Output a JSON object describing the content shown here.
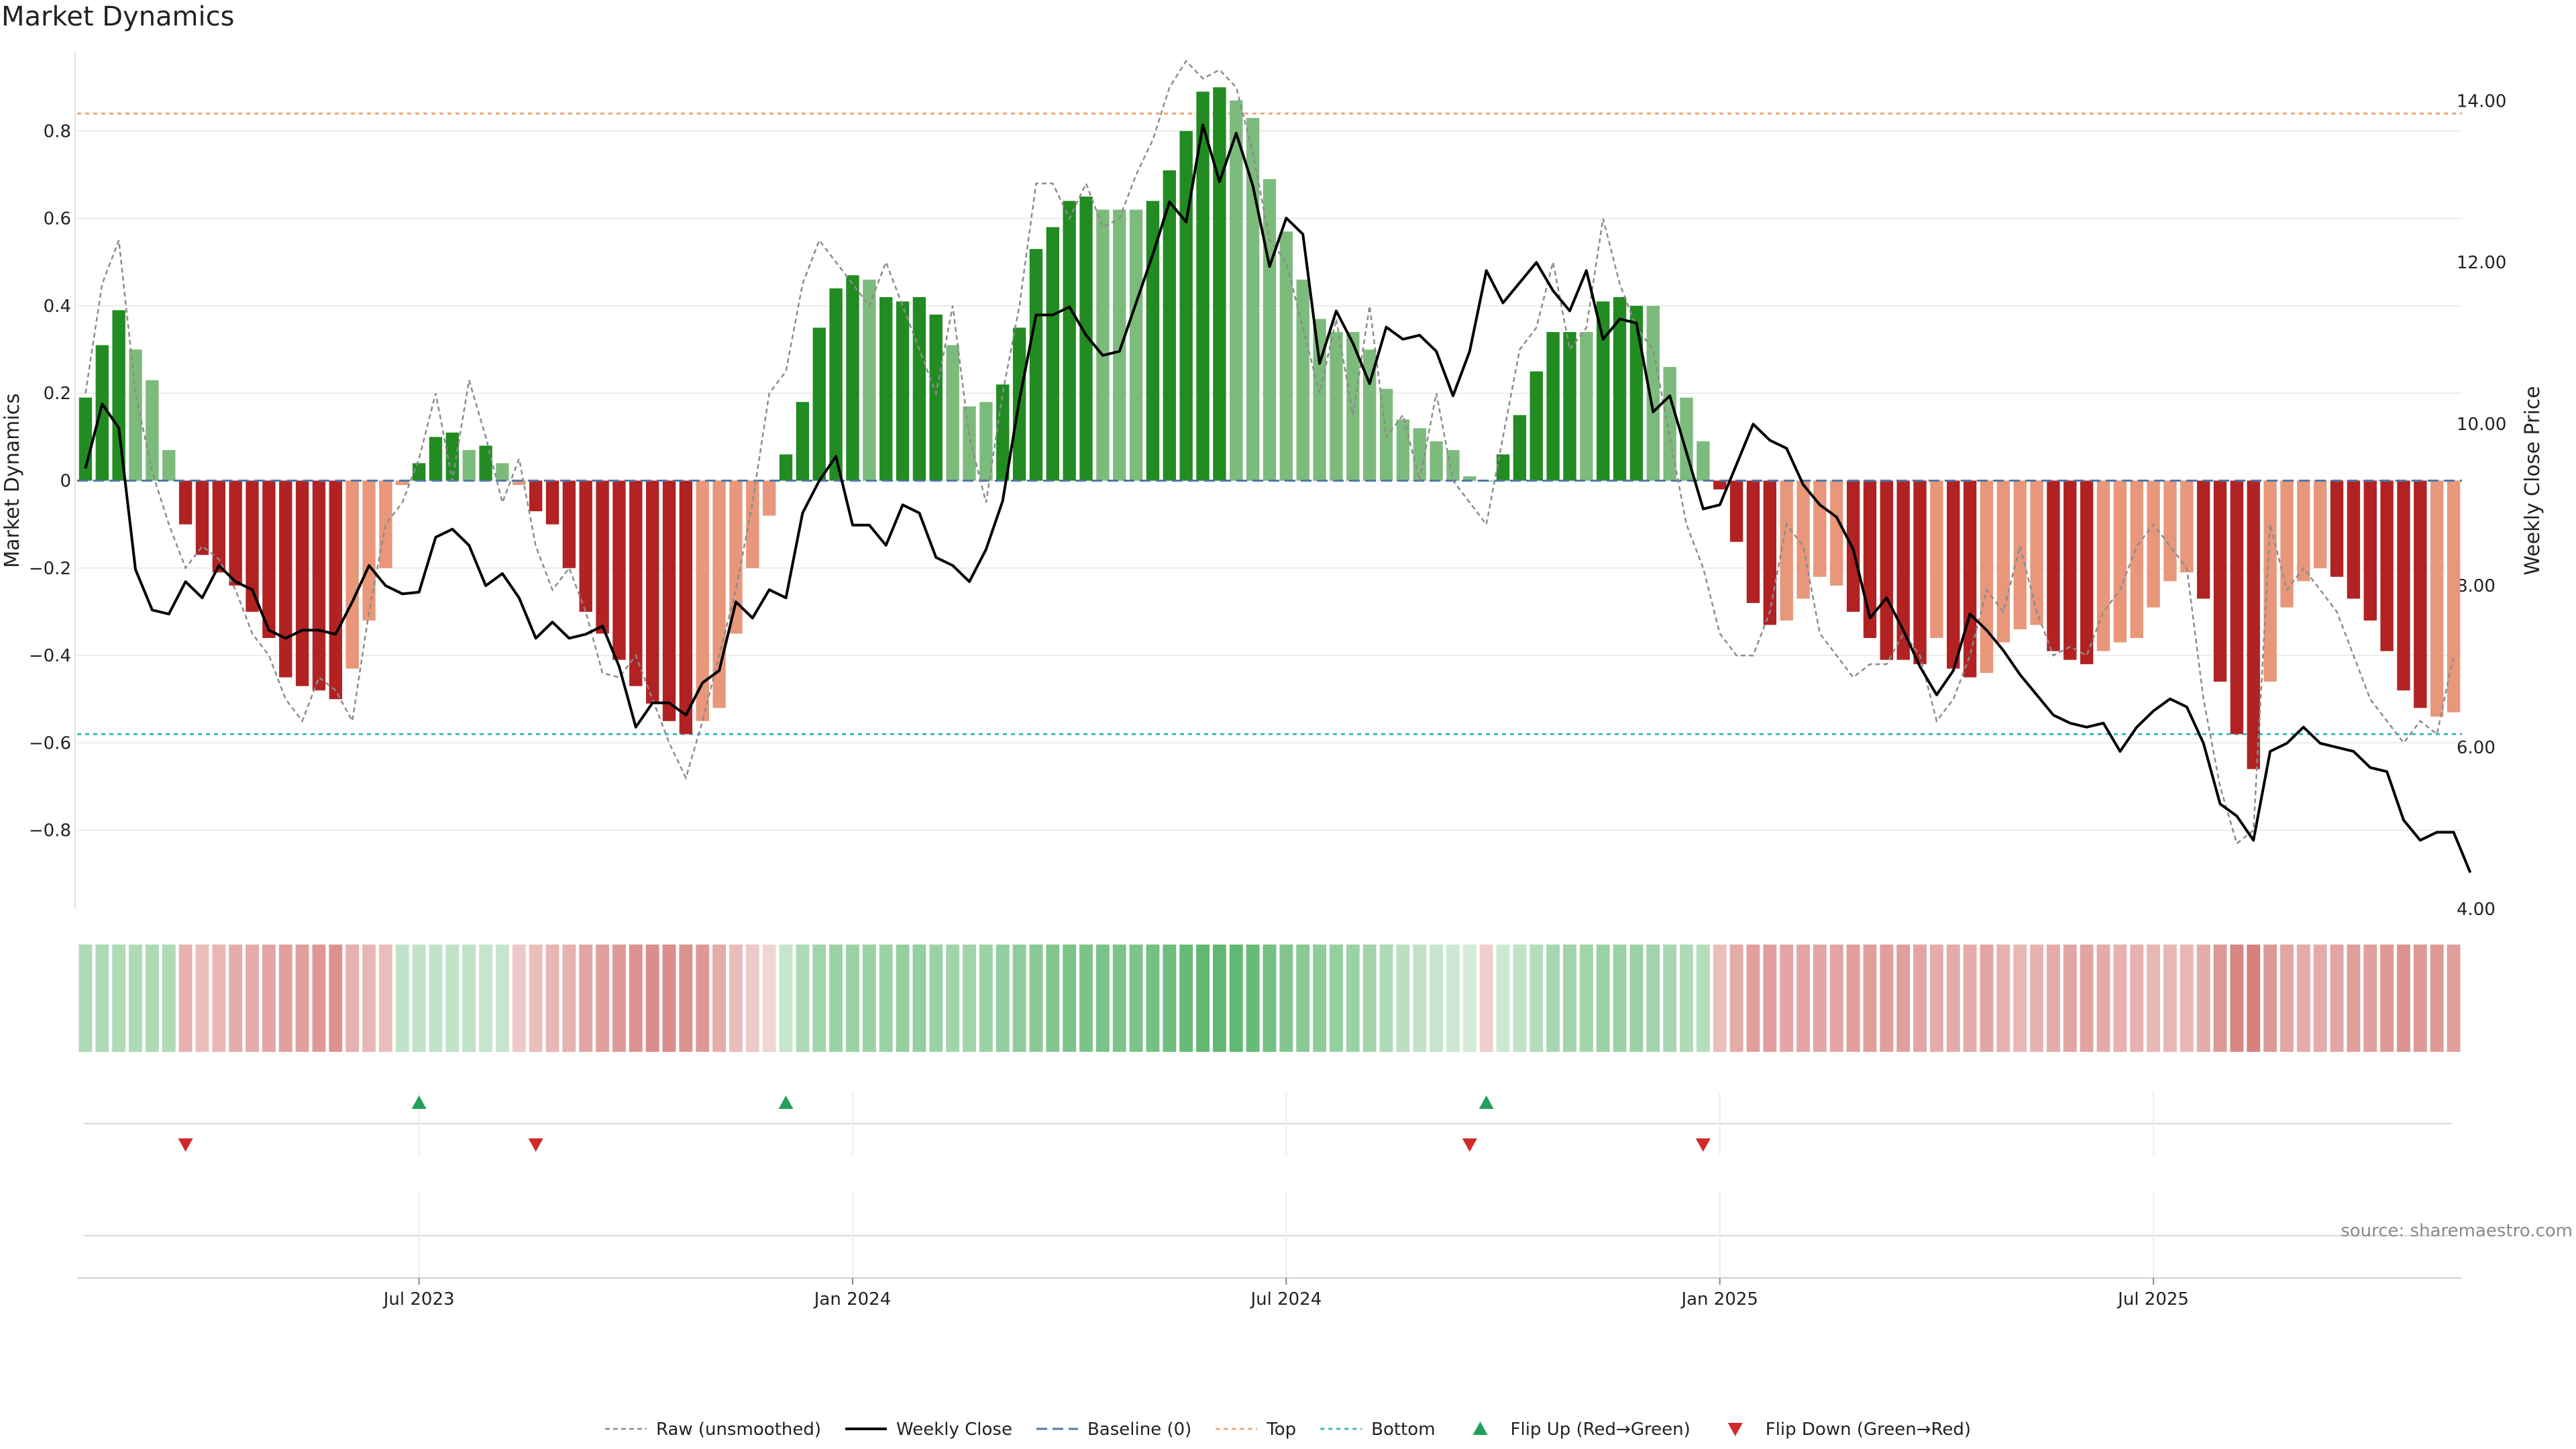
{
  "title": "Market Dynamics",
  "source": "source: sharemaestro.com",
  "colors": {
    "up_strong": "#228b22",
    "up_weak": "#7dbb7d",
    "down_strong": "#b22222",
    "down_weak": "#e8977a",
    "close": "#000000",
    "raw": "#8c8c8c",
    "baseline": "#4f78a8",
    "top": "#e8a77a",
    "bottom": "#3cbcc6",
    "flip_up": "#22a05a",
    "flip_down": "#d02a2a"
  },
  "chart_data": {
    "type": "bar",
    "ylabel_left": "Market Dynamics",
    "ylabel_right": "Weekly Close Price",
    "ylim_left": [
      -0.98,
      0.98
    ],
    "ylim_right": [
      4.0,
      14.6
    ],
    "left_ticks": [
      0.8,
      0.6,
      0.4,
      0.2,
      0,
      -0.2,
      -0.4,
      -0.6,
      -0.8
    ],
    "left_tick_labels": [
      "0.8",
      "0.6",
      "0.4",
      "0.2",
      "0",
      "−0.2",
      "−0.4",
      "−0.6",
      "−0.8"
    ],
    "right_ticks": [
      14,
      12,
      10,
      8,
      6,
      4
    ],
    "right_tick_labels": [
      "14.00",
      "12.00",
      "10.00",
      "8.00",
      "6.00",
      "4.00"
    ],
    "top_level": 0.84,
    "bottom_level": -0.58,
    "x_tick_labels": [
      {
        "label": "Jul 2023",
        "week": 20
      },
      {
        "label": "Jan 2024",
        "week": 46
      },
      {
        "label": "Jul 2024",
        "week": 72
      },
      {
        "label": "Jan 2025",
        "week": 98
      },
      {
        "label": "Jul 2025",
        "week": 124
      }
    ],
    "momentum": [
      0.19,
      0.31,
      0.39,
      0.3,
      0.23,
      0.07,
      -0.1,
      -0.17,
      -0.21,
      -0.24,
      -0.3,
      -0.36,
      -0.45,
      -0.47,
      -0.48,
      -0.5,
      -0.43,
      -0.32,
      -0.2,
      -0.01,
      0.04,
      0.1,
      0.11,
      0.07,
      0.08,
      0.04,
      -0.01,
      -0.07,
      -0.1,
      -0.2,
      -0.3,
      -0.35,
      -0.41,
      -0.47,
      -0.51,
      -0.55,
      -0.58,
      -0.55,
      -0.52,
      -0.35,
      -0.2,
      -0.08,
      0.06,
      0.18,
      0.35,
      0.44,
      0.47,
      0.46,
      0.42,
      0.41,
      0.42,
      0.38,
      0.31,
      0.17,
      0.18,
      0.22,
      0.35,
      0.53,
      0.58,
      0.64,
      0.65,
      0.62,
      0.62,
      0.62,
      0.64,
      0.71,
      0.8,
      0.89,
      0.9,
      0.87,
      0.83,
      0.69,
      0.57,
      0.46,
      0.37,
      0.34,
      0.34,
      0.3,
      0.21,
      0.14,
      0.12,
      0.09,
      0.07,
      0.01,
      0.0,
      0.06,
      0.15,
      0.25,
      0.34,
      0.34,
      0.34,
      0.41,
      0.42,
      0.4,
      0.4,
      0.26,
      0.19,
      0.09,
      -0.02,
      -0.14,
      -0.28,
      -0.33,
      -0.32,
      -0.27,
      -0.22,
      -0.24,
      -0.3,
      -0.36,
      -0.41,
      -0.41,
      -0.42,
      -0.36,
      -0.43,
      -0.45,
      -0.44,
      -0.37,
      -0.34,
      -0.33,
      -0.39,
      -0.41,
      -0.42,
      -0.39,
      -0.37,
      -0.36,
      -0.29,
      -0.23,
      -0.21,
      -0.27,
      -0.46,
      -0.58,
      -0.66,
      -0.46,
      -0.29,
      -0.23,
      -0.2,
      -0.22,
      -0.27,
      -0.32,
      -0.39,
      -0.48,
      -0.52,
      -0.54,
      -0.53
    ],
    "strength": [
      "s",
      "s",
      "s",
      "w",
      "w",
      "w",
      "s",
      "s",
      "s",
      "s",
      "s",
      "s",
      "s",
      "s",
      "s",
      "s",
      "w",
      "w",
      "w",
      "w",
      "s",
      "s",
      "s",
      "w",
      "s",
      "w",
      "w",
      "s",
      "s",
      "s",
      "s",
      "s",
      "s",
      "s",
      "s",
      "s",
      "s",
      "w",
      "w",
      "w",
      "w",
      "w",
      "s",
      "s",
      "s",
      "s",
      "s",
      "w",
      "s",
      "s",
      "s",
      "s",
      "w",
      "w",
      "w",
      "s",
      "s",
      "s",
      "s",
      "s",
      "s",
      "w",
      "w",
      "w",
      "s",
      "s",
      "s",
      "s",
      "s",
      "w",
      "w",
      "w",
      "w",
      "w",
      "w",
      "w",
      "w",
      "w",
      "w",
      "w",
      "w",
      "w",
      "w",
      "w",
      "w",
      "s",
      "s",
      "s",
      "s",
      "s",
      "w",
      "s",
      "s",
      "s",
      "w",
      "w",
      "w",
      "w",
      "s",
      "s",
      "s",
      "s",
      "w",
      "w",
      "w",
      "w",
      "s",
      "s",
      "s",
      "s",
      "s",
      "w",
      "s",
      "s",
      "w",
      "w",
      "w",
      "w",
      "s",
      "s",
      "s",
      "w",
      "w",
      "w",
      "w",
      "w",
      "w",
      "s",
      "s",
      "s",
      "s",
      "w",
      "w",
      "w",
      "w",
      "s",
      "s",
      "s",
      "s",
      "s",
      "s",
      "w"
    ],
    "raw": [
      0.2,
      0.45,
      0.55,
      0.2,
      0.02,
      -0.1,
      -0.2,
      -0.15,
      -0.18,
      -0.25,
      -0.35,
      -0.4,
      -0.5,
      -0.55,
      -0.45,
      -0.48,
      -0.55,
      -0.3,
      -0.1,
      -0.05,
      0.05,
      0.2,
      0.0,
      0.23,
      0.1,
      -0.05,
      0.05,
      -0.15,
      -0.25,
      -0.2,
      -0.3,
      -0.44,
      -0.45,
      -0.4,
      -0.5,
      -0.6,
      -0.68,
      -0.55,
      -0.4,
      -0.25,
      -0.05,
      0.2,
      0.25,
      0.45,
      0.55,
      0.5,
      0.45,
      0.4,
      0.5,
      0.4,
      0.3,
      0.2,
      0.4,
      0.1,
      -0.05,
      0.2,
      0.4,
      0.68,
      0.68,
      0.6,
      0.68,
      0.58,
      0.6,
      0.7,
      0.78,
      0.9,
      0.96,
      0.92,
      0.94,
      0.9,
      0.75,
      0.55,
      0.5,
      0.35,
      0.2,
      0.37,
      0.15,
      0.4,
      0.1,
      0.15,
      0.0,
      0.2,
      0.0,
      -0.05,
      -0.1,
      0.1,
      0.3,
      0.35,
      0.5,
      0.3,
      0.35,
      0.6,
      0.45,
      0.35,
      0.3,
      0.1,
      -0.1,
      -0.2,
      -0.35,
      -0.4,
      -0.4,
      -0.3,
      -0.1,
      -0.15,
      -0.35,
      -0.4,
      -0.45,
      -0.42,
      -0.42,
      -0.35,
      -0.4,
      -0.55,
      -0.5,
      -0.4,
      -0.25,
      -0.3,
      -0.15,
      -0.3,
      -0.4,
      -0.38,
      -0.4,
      -0.3,
      -0.25,
      -0.15,
      -0.1,
      -0.15,
      -0.2,
      -0.5,
      -0.7,
      -0.83,
      -0.8,
      -0.1,
      -0.25,
      -0.2,
      -0.25,
      -0.3,
      -0.4,
      -0.5,
      -0.55,
      -0.6,
      -0.55,
      -0.58,
      -0.4
    ],
    "close": [
      9.45,
      10.25,
      9.95,
      8.2,
      7.7,
      7.65,
      8.05,
      7.85,
      8.25,
      8.05,
      7.95,
      7.45,
      7.35,
      7.45,
      7.45,
      7.4,
      7.8,
      8.25,
      8.0,
      7.9,
      7.92,
      8.6,
      8.7,
      8.5,
      8.0,
      8.15,
      7.85,
      7.35,
      7.55,
      7.35,
      7.4,
      7.5,
      7.0,
      6.25,
      6.55,
      6.55,
      6.4,
      6.8,
      6.95,
      7.8,
      7.6,
      7.95,
      7.85,
      8.9,
      9.3,
      9.6,
      8.75,
      8.75,
      8.5,
      9.0,
      8.9,
      8.35,
      8.25,
      8.05,
      8.45,
      9.05,
      10.3,
      11.35,
      11.35,
      11.45,
      11.1,
      10.85,
      10.9,
      11.5,
      12.1,
      12.75,
      12.5,
      13.7,
      13.0,
      13.6,
      12.95,
      11.95,
      12.55,
      12.35,
      10.75,
      11.4,
      11.0,
      10.5,
      11.2,
      11.05,
      11.1,
      10.9,
      10.35,
      10.9,
      11.9,
      11.5,
      11.75,
      12.0,
      11.65,
      11.4,
      11.9,
      11.05,
      11.3,
      11.25,
      10.15,
      10.35,
      9.65,
      8.95,
      9.0,
      9.5,
      10.0,
      9.8,
      9.7,
      9.25,
      9.0,
      8.85,
      8.45,
      7.6,
      7.85,
      7.45,
      7.0,
      6.65,
      6.95,
      7.65,
      7.45,
      7.2,
      6.9,
      6.65,
      6.4,
      6.3,
      6.25,
      6.3,
      5.95,
      6.25,
      6.45,
      6.6,
      6.5,
      6.05,
      5.3,
      5.15,
      4.85,
      5.95,
      6.05,
      6.25,
      6.05,
      6.0,
      5.95,
      5.75,
      5.7,
      5.1,
      4.85,
      4.95,
      4.95,
      4.45
    ],
    "heat_strip": [
      0.4,
      0.4,
      0.4,
      0.4,
      0.4,
      0.4,
      -0.4,
      -0.3,
      -0.35,
      -0.45,
      -0.45,
      -0.5,
      -0.55,
      -0.55,
      -0.6,
      -0.65,
      -0.4,
      -0.35,
      -0.3,
      0.25,
      0.25,
      0.25,
      0.25,
      0.25,
      0.2,
      0.2,
      -0.2,
      -0.3,
      -0.35,
      -0.4,
      -0.5,
      -0.55,
      -0.6,
      -0.65,
      -0.7,
      -0.7,
      -0.65,
      -0.6,
      -0.45,
      -0.3,
      -0.2,
      -0.1,
      0.2,
      0.4,
      0.5,
      0.55,
      0.55,
      0.55,
      0.55,
      0.6,
      0.6,
      0.55,
      0.5,
      0.5,
      0.55,
      0.6,
      0.65,
      0.7,
      0.75,
      0.8,
      0.8,
      0.8,
      0.8,
      0.8,
      0.85,
      0.9,
      0.95,
      1.0,
      1.0,
      1.0,
      0.95,
      0.85,
      0.75,
      0.7,
      0.65,
      0.6,
      0.55,
      0.5,
      0.4,
      0.3,
      0.25,
      0.2,
      0.15,
      0.1,
      -0.15,
      0.15,
      0.25,
      0.35,
      0.45,
      0.5,
      0.5,
      0.55,
      0.55,
      0.55,
      0.5,
      0.45,
      0.4,
      0.35,
      -0.3,
      -0.45,
      -0.55,
      -0.55,
      -0.5,
      -0.5,
      -0.5,
      -0.5,
      -0.55,
      -0.55,
      -0.55,
      -0.55,
      -0.5,
      -0.45,
      -0.45,
      -0.45,
      -0.5,
      -0.4,
      -0.35,
      -0.4,
      -0.45,
      -0.5,
      -0.5,
      -0.45,
      -0.4,
      -0.4,
      -0.35,
      -0.35,
      -0.35,
      -0.45,
      -0.6,
      -0.75,
      -0.8,
      -0.6,
      -0.5,
      -0.45,
      -0.45,
      -0.5,
      -0.55,
      -0.55,
      -0.6,
      -0.65,
      -0.6,
      -0.6,
      -0.55
    ],
    "flips_up": [
      20,
      42,
      84
    ],
    "flips_down": [
      6,
      27,
      83,
      97
    ],
    "legend": [
      {
        "label": "Raw (unsmoothed)",
        "kind": "raw"
      },
      {
        "label": "Weekly Close",
        "kind": "close"
      },
      {
        "label": "Baseline (0)",
        "kind": "baseline"
      },
      {
        "label": "Top",
        "kind": "top"
      },
      {
        "label": "Bottom",
        "kind": "bottom"
      },
      {
        "label": "Flip Up (Red→Green)",
        "kind": "flip_up"
      },
      {
        "label": "Flip Down (Green→Red)",
        "kind": "flip_down"
      }
    ]
  }
}
